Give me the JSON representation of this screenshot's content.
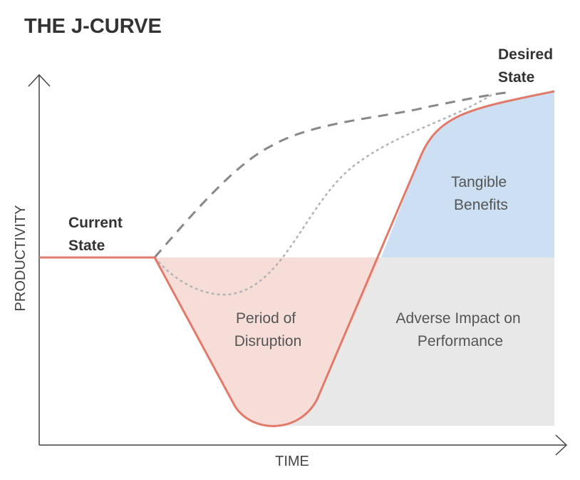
{
  "title": "THE J-CURVE",
  "axes": {
    "x_label": "TIME",
    "y_label": "PRODUCTIVITY"
  },
  "labels": {
    "current_state": [
      "Current",
      "State"
    ],
    "desired_state": [
      "Desired",
      "State"
    ],
    "period_of_disruption": [
      "Period of",
      "Disruption"
    ],
    "tangible_benefits": [
      "Tangible",
      "Benefits"
    ],
    "adverse_impact": [
      "Adverse Impact on",
      "Performance"
    ]
  },
  "colors": {
    "j_curve": "#e07b6c",
    "disruption_fill": "#f7ddd8",
    "benefits_fill": "#cddff2",
    "adverse_fill": "#e8e8e8",
    "dashed_curve": "#888888",
    "dotted_curve": "#b3b3b3",
    "axis": "#444444"
  }
}
